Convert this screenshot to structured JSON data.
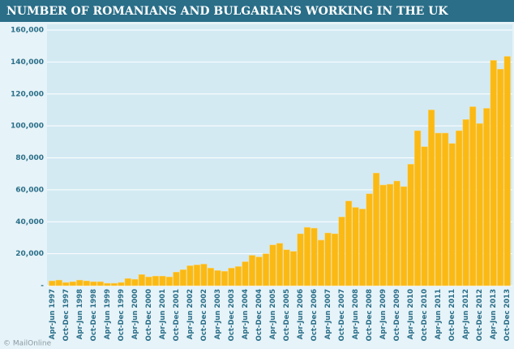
{
  "chart_data": {
    "type": "bar",
    "title": "NUMBER OF ROMANIANS AND BULGARIANS WORKING IN THE UK",
    "categories": [
      "Apr-Jun 1997",
      null,
      "Oct-Dec 1997",
      null,
      "Apr-Jun 1998",
      null,
      "Oct-Dec 1998",
      null,
      "Apr-Jun 1999",
      null,
      "Oct-Dec 1999",
      null,
      "Apr-Jun 2000",
      null,
      "Oct-Dec 2000",
      null,
      "Apr-Jun 2001",
      null,
      "Oct-Dec 2001",
      null,
      "Apr-Jun 2002",
      null,
      "Oct-Dec 2002",
      null,
      "Apr-Jun 2003",
      null,
      "Oct-Dec 2003",
      null,
      "Apr-Jun 2004",
      null,
      "Oct-Dec 2004",
      null,
      "Apr-Jun 2005",
      null,
      "Oct-Dec 2005",
      null,
      "Apr-Jun 2006",
      null,
      "Oct-Dec 2006",
      null,
      "Apr-Jun 2007",
      null,
      "Oct-Dec 2007",
      null,
      "Apr-Jun 2008",
      null,
      "Oct-Dec 2008",
      null,
      "Apr-Jun 2009",
      null,
      "Oct-Dec 2009",
      null,
      "Apr-Jun 2010",
      null,
      "Oct-Dec 2010",
      null,
      "Apr-Jun 2011",
      null,
      "Oct-Dec 2011",
      null,
      "Apr-Jun 2012",
      null,
      "Oct-Dec 2012",
      null,
      "Apr-Jun 2013",
      null,
      "Oct-Dec 2013"
    ],
    "values": [
      3000,
      3500,
      2000,
      2500,
      3500,
      3000,
      2500,
      2500,
      1500,
      1500,
      2000,
      4500,
      4000,
      7000,
      5500,
      6000,
      6000,
      5500,
      8500,
      10000,
      12500,
      13000,
      13500,
      11000,
      9500,
      9000,
      11000,
      12000,
      15000,
      19000,
      18000,
      20000,
      25500,
      26500,
      22500,
      21500,
      32500,
      36500,
      36000,
      28500,
      33000,
      32500,
      43000,
      53000,
      49000,
      48000,
      57500,
      70500,
      63000,
      63500,
      65500,
      62000,
      76000,
      97000,
      87000,
      110000,
      95500,
      95500,
      89000,
      97000,
      104000,
      112000,
      101500,
      111000,
      141000,
      135500,
      143500
    ],
    "color": "#fbb914",
    "ylim": [
      0,
      160000
    ],
    "yticks": [
      {
        "value": 0,
        "label": "-"
      },
      {
        "value": 20000,
        "label": "20,000"
      },
      {
        "value": 40000,
        "label": "40,000"
      },
      {
        "value": 60000,
        "label": "60,000"
      },
      {
        "value": 80000,
        "label": "80,000"
      },
      {
        "value": 100000,
        "label": "100,000"
      },
      {
        "value": 120000,
        "label": "120,000"
      },
      {
        "value": 140000,
        "label": "140,000"
      },
      {
        "value": 160000,
        "label": "160,000"
      }
    ],
    "grid": true,
    "footer": "© MailOnline"
  }
}
